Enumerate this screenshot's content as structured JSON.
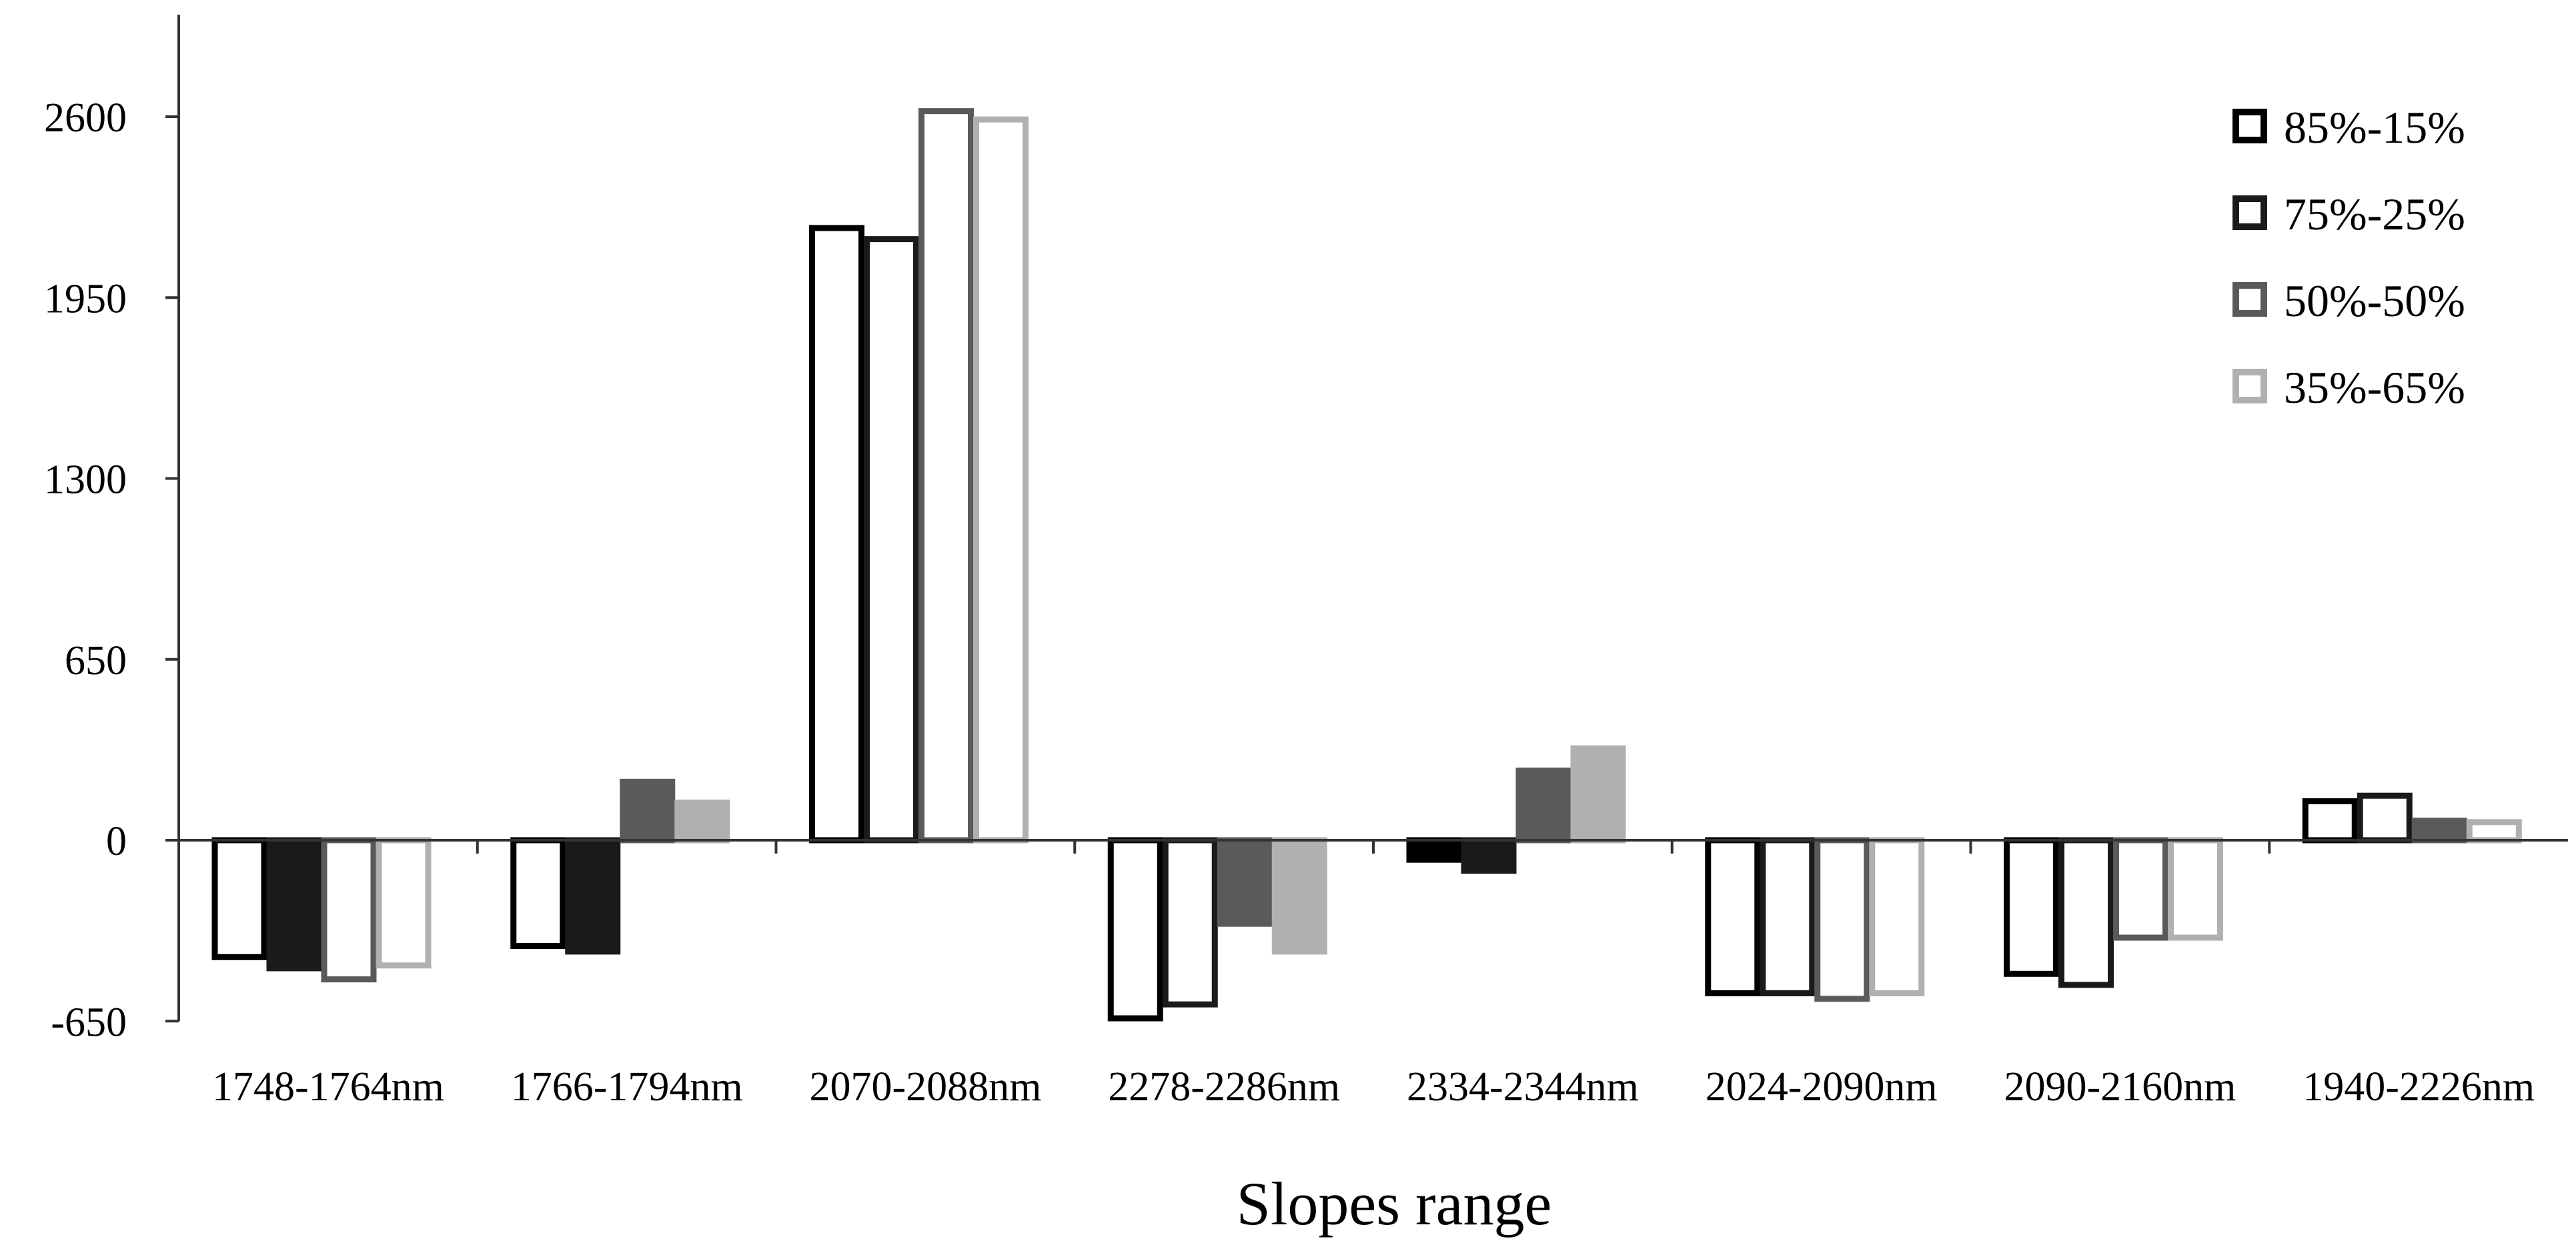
{
  "chart_data": {
    "type": "bar",
    "title": "",
    "xlabel": "Slopes  range",
    "ylabel": "",
    "ylim": [
      -650,
      2900
    ],
    "yticks": [
      -650,
      0,
      650,
      1300,
      1950,
      2600
    ],
    "grid": false,
    "legend_position": "top-right",
    "categories": [
      "1748-1764nm",
      "1766-1794nm",
      "2070-2088nm",
      "2278-2286nm",
      "2334-2344nm",
      "2024-2090nm",
      "2090-2160nm",
      "1940-2226nm"
    ],
    "series": [
      {
        "name": "85%-15%",
        "fill": "#ffffff",
        "stroke": "#000000",
        "values": [
          -420,
          -380,
          2200,
          -640,
          -70,
          -550,
          -480,
          140
        ]
      },
      {
        "name": "75%-25%",
        "fill": "#ffffff",
        "stroke": "#1a1a1a",
        "values": [
          -460,
          -400,
          2160,
          -590,
          -110,
          -550,
          -520,
          160
        ]
      },
      {
        "name": "50%-50%",
        "fill": "#ffffff",
        "stroke": "#5a5a5a",
        "values": [
          -500,
          210,
          2620,
          -300,
          250,
          -570,
          -350,
          70
        ]
      },
      {
        "name": "35%-65%",
        "fill": "#ffffff",
        "stroke": "#b0b0b0",
        "values": [
          -450,
          135,
          2590,
          -400,
          330,
          -550,
          -350,
          65
        ]
      }
    ],
    "filled": [
      [
        false,
        true,
        false,
        false
      ],
      [
        false,
        true,
        true,
        true
      ],
      [
        false,
        false,
        false,
        false
      ],
      [
        false,
        false,
        true,
        true
      ],
      [
        true,
        true,
        true,
        true
      ],
      [
        false,
        false,
        false,
        false
      ],
      [
        false,
        false,
        false,
        false
      ],
      [
        false,
        false,
        true,
        false
      ]
    ],
    "fill_colors": [
      "#000000",
      "#1a1a1a",
      "#5a5a5a",
      "#b0b0b0"
    ]
  }
}
